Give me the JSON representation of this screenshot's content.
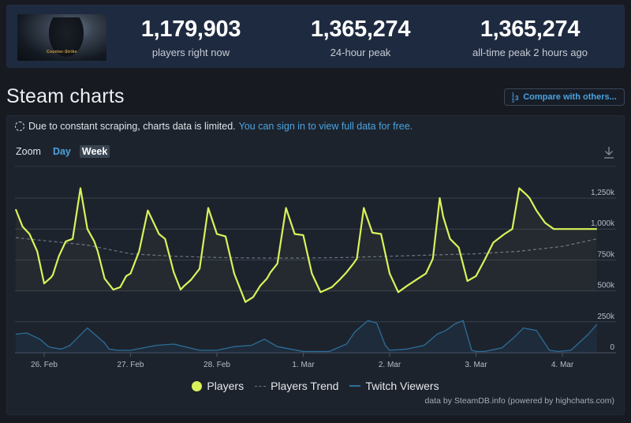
{
  "stats": {
    "game_name": "Counter-Strike",
    "players_now": {
      "value": "1,179,903",
      "label": "players right now"
    },
    "peak_24h": {
      "value": "1,365,274",
      "label": "24-hour peak"
    },
    "peak_all_time": {
      "value": "1,365,274",
      "label": "all-time peak 2 hours ago"
    }
  },
  "header": {
    "title": "Steam charts",
    "compare_button": "Compare with others..."
  },
  "notice": {
    "text": "Due to constant scraping, charts data is limited.",
    "link": "You can sign in to view full data for free."
  },
  "zoom": {
    "label": "Zoom",
    "options": [
      "Day",
      "Week"
    ],
    "active": "Week"
  },
  "legend": {
    "players": "Players",
    "trend": "Players Trend",
    "twitch": "Twitch Viewers"
  },
  "credits": "data by SteamDB.info (powered by highcharts.com)",
  "colors": {
    "players": "#d9f25b",
    "trend": "#6b7585",
    "twitch": "#2d6e99",
    "link": "#4aa3df",
    "panel": "#1d232d",
    "stats_bg": "#1e2a3f"
  },
  "chart_data": {
    "type": "line",
    "title": "Steam charts",
    "xlabel": "",
    "ylabel": "",
    "ylim": [
      0,
      1400000
    ],
    "yticks": [
      "0",
      "250k",
      "500k",
      "750k",
      "1,000k",
      "1,250k"
    ],
    "ytick_values": [
      0,
      250000,
      500000,
      750000,
      1000000,
      1250000
    ],
    "xticks": [
      "26. Feb",
      "27. Feb",
      "28. Feb",
      "1. Mar",
      "2. Mar",
      "3. Mar",
      "4. Mar"
    ],
    "grid": true,
    "legend_position": "bottom",
    "x_unit": "days since 26 Feb 00:00",
    "series": [
      {
        "name": "Players",
        "x": [
          -0.33,
          -0.25,
          -0.17,
          -0.08,
          0.0,
          0.08,
          0.1,
          0.17,
          0.25,
          0.33,
          0.42,
          0.5,
          0.58,
          0.62,
          0.7,
          0.8,
          0.88,
          0.95,
          1.0,
          1.1,
          1.2,
          1.33,
          1.4,
          1.5,
          1.58,
          1.62,
          1.7,
          1.8,
          1.9,
          2.0,
          2.1,
          2.2,
          2.33,
          2.42,
          2.5,
          2.58,
          2.62,
          2.7,
          2.8,
          2.9,
          3.0,
          3.1,
          3.2,
          3.33,
          3.42,
          3.5,
          3.58,
          3.62,
          3.7,
          3.8,
          3.9,
          4.0,
          4.1,
          4.2,
          4.33,
          4.42,
          4.5,
          4.58,
          4.62,
          4.7,
          4.8,
          4.9,
          5.0,
          5.1,
          5.2,
          5.33,
          5.42,
          5.5,
          5.58,
          5.62,
          5.7,
          5.8,
          5.9,
          6.0,
          6.1,
          6.2,
          6.25,
          6.3,
          6.4
        ],
        "values": [
          1160000,
          1020000,
          960000,
          820000,
          560000,
          610000,
          630000,
          780000,
          900000,
          920000,
          1330000,
          1000000,
          900000,
          820000,
          600000,
          510000,
          530000,
          620000,
          640000,
          820000,
          1150000,
          960000,
          920000,
          650000,
          510000,
          540000,
          590000,
          680000,
          1170000,
          960000,
          940000,
          640000,
          410000,
          450000,
          540000,
          600000,
          650000,
          720000,
          1170000,
          960000,
          950000,
          640000,
          490000,
          530000,
          590000,
          650000,
          720000,
          760000,
          1170000,
          970000,
          960000,
          640000,
          490000,
          540000,
          600000,
          640000,
          760000,
          1250000,
          1100000,
          920000,
          850000,
          580000,
          620000,
          750000,
          890000,
          960000,
          1000000,
          1330000,
          1280000,
          1250000,
          1150000,
          1050000,
          1000000,
          1000000,
          1000000,
          1000000,
          1000000,
          1000000,
          1000000
        ]
      },
      {
        "name": "Players Trend",
        "style": "dashed",
        "x": [
          -0.33,
          0.5,
          1.0,
          1.5,
          2.0,
          2.5,
          3.0,
          3.5,
          4.0,
          4.5,
          5.0,
          5.5,
          6.0,
          6.4
        ],
        "values": [
          930000,
          870000,
          800000,
          780000,
          770000,
          765000,
          765000,
          770000,
          780000,
          790000,
          800000,
          820000,
          860000,
          920000
        ]
      },
      {
        "name": "Twitch Viewers",
        "x": [
          -0.33,
          -0.2,
          -0.05,
          0.05,
          0.1,
          0.2,
          0.3,
          0.4,
          0.5,
          0.6,
          0.7,
          0.75,
          0.85,
          1.0,
          1.3,
          1.5,
          1.8,
          2.0,
          2.2,
          2.4,
          2.55,
          2.7,
          3.0,
          3.3,
          3.5,
          3.6,
          3.75,
          3.85,
          3.95,
          4.0,
          4.2,
          4.4,
          4.55,
          4.65,
          4.75,
          4.85,
          4.95,
          5.0,
          5.1,
          5.3,
          5.45,
          5.55,
          5.7,
          5.85,
          5.95,
          6.1,
          6.3,
          6.4
        ],
        "values": [
          150000,
          160000,
          110000,
          50000,
          40000,
          30000,
          60000,
          130000,
          200000,
          140000,
          80000,
          30000,
          20000,
          20000,
          60000,
          70000,
          20000,
          20000,
          50000,
          60000,
          110000,
          50000,
          10000,
          10000,
          70000,
          170000,
          260000,
          240000,
          60000,
          20000,
          30000,
          60000,
          150000,
          180000,
          230000,
          260000,
          20000,
          10000,
          10000,
          40000,
          130000,
          200000,
          180000,
          20000,
          10000,
          20000,
          150000,
          230000
        ]
      }
    ]
  }
}
